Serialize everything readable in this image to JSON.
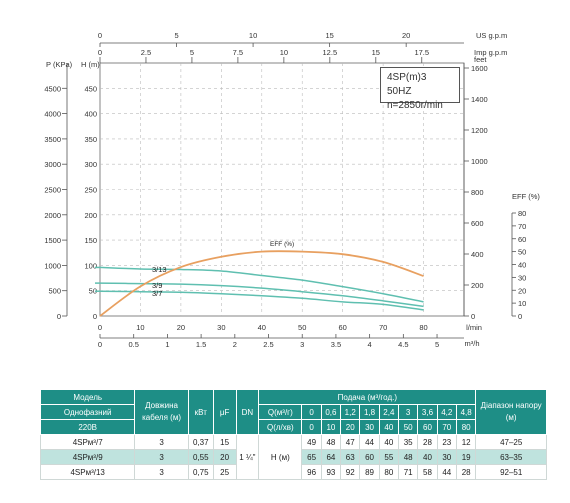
{
  "chart_data": {
    "type": "line",
    "info": {
      "model": "4SP(m)3  50HZ",
      "speed": "n=2850r/min"
    },
    "x_flow": {
      "unit": "l/min",
      "range": [
        0,
        80
      ],
      "ticks": [
        0,
        10,
        20,
        30,
        40,
        50,
        60,
        70,
        80
      ]
    },
    "x_m3h": {
      "unit": "m³/h",
      "ticks": [
        "0",
        "0.5",
        "1",
        "1.5",
        "2",
        "2.5",
        "3",
        "3.5",
        "4",
        "4.5",
        "5"
      ]
    },
    "x_us_gpm": {
      "unit": "US g.p.m",
      "ticks": [
        "0",
        "5",
        "10",
        "15",
        "20"
      ]
    },
    "x_imp_gpm": {
      "unit": "Imp g.p.m",
      "ticks": [
        "0",
        "2.5",
        "5",
        "7.5",
        "10",
        "12.5",
        "15",
        "17.5"
      ]
    },
    "y_head": {
      "label": "H (m)",
      "range": [
        0,
        500
      ],
      "ticks": [
        0,
        50,
        100,
        150,
        200,
        250,
        300,
        350,
        400,
        450
      ]
    },
    "y_pressure": {
      "label": "P (KPa)",
      "ticks": [
        0,
        500,
        1000,
        1500,
        2000,
        2500,
        3000,
        3500,
        4000,
        4500
      ]
    },
    "y_feet": {
      "label": "feet",
      "ticks": [
        0,
        200,
        400,
        600,
        800,
        1000,
        1200,
        1400,
        1600
      ]
    },
    "y_eff": {
      "label": "EFF (%)",
      "range": [
        0,
        80
      ],
      "ticks": [
        0,
        10,
        20,
        30,
        40,
        50,
        60,
        70,
        80
      ]
    },
    "series": [
      {
        "name": "3/13",
        "x": [
          0,
          10,
          20,
          30,
          40,
          50,
          60,
          70,
          80
        ],
        "y": [
          96,
          93,
          92,
          89,
          80,
          71,
          58,
          44,
          28
        ]
      },
      {
        "name": "3/9",
        "x": [
          0,
          10,
          20,
          30,
          40,
          50,
          60,
          70,
          80
        ],
        "y": [
          65,
          64,
          63,
          60,
          55,
          48,
          40,
          30,
          19
        ]
      },
      {
        "name": "3/7",
        "x": [
          0,
          10,
          20,
          30,
          40,
          50,
          60,
          70,
          80
        ],
        "y": [
          49,
          48,
          47,
          44,
          40,
          35,
          28,
          23,
          12
        ]
      },
      {
        "name": "EFF (%)",
        "axis": "eff",
        "x": [
          0,
          10,
          20,
          30,
          40,
          50,
          60,
          70,
          80
        ],
        "y": [
          0,
          23,
          38,
          46,
          50,
          50,
          48,
          42,
          31
        ]
      }
    ],
    "colors": {
      "head": "#5fbfb0",
      "eff": "#e8a060"
    }
  },
  "table": {
    "h_model": "Модель",
    "h_phase": "Однофазний",
    "h_volt": "220В",
    "h_cable": "Довжина кабеля (м)",
    "h_kw": "кВт",
    "h_uf": "μF",
    "h_dn": "DN",
    "h_supply": "Подача (м³/год.)",
    "h_qm3": "Q(м³/г)",
    "h_ql": "Q(л/хв)",
    "h_range": "Діапазон напору (м)",
    "q_m3": [
      "0",
      "0,6",
      "1,2",
      "1,8",
      "2,4",
      "3",
      "3,6",
      "4,2",
      "4,8"
    ],
    "q_l": [
      "0",
      "10",
      "20",
      "30",
      "40",
      "50",
      "60",
      "70",
      "80"
    ],
    "dn": "1 ¼\"",
    "h_label": "H (м)",
    "rows": [
      {
        "model": "4SPм³/7",
        "cable": "3",
        "kw": "0,37",
        "uf": "15",
        "h": [
          "49",
          "48",
          "47",
          "44",
          "40",
          "35",
          "28",
          "23",
          "12"
        ],
        "range": "47–25"
      },
      {
        "model": "4SPм³/9",
        "cable": "3",
        "kw": "0,55",
        "uf": "20",
        "h": [
          "65",
          "64",
          "63",
          "60",
          "55",
          "48",
          "40",
          "30",
          "19"
        ],
        "range": "63–35"
      },
      {
        "model": "4SPм³/13",
        "cable": "3",
        "kw": "0,75",
        "uf": "25",
        "h": [
          "96",
          "93",
          "92",
          "89",
          "80",
          "71",
          "58",
          "44",
          "28"
        ],
        "range": "92–51"
      }
    ]
  }
}
